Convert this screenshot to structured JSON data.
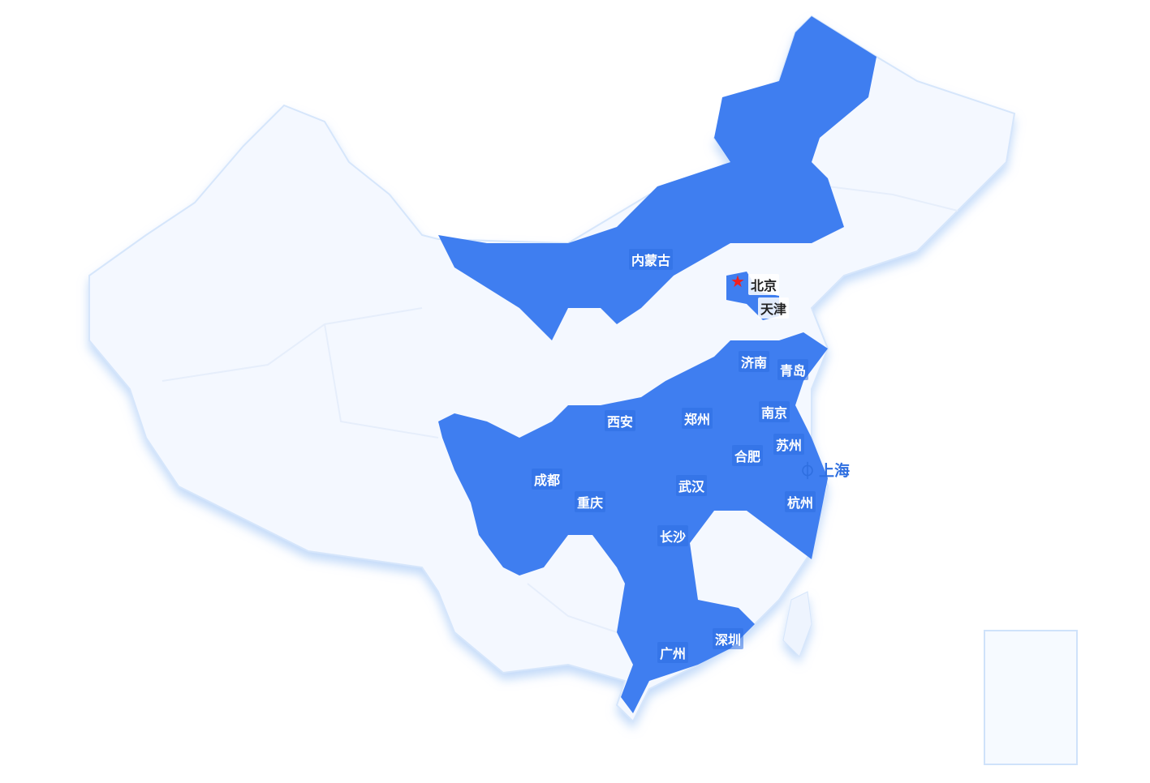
{
  "map": {
    "colors": {
      "highlight": "#3f7ef0",
      "base": "#f4f8ff",
      "border": "#d6e6fb",
      "capital_marker": "#f0201f",
      "shanghai_label": "#2f6fe0"
    },
    "capital": {
      "label": "北京",
      "icon": "star-icon"
    },
    "tianjin": "天津",
    "shanghai": {
      "label": "上海",
      "icon": "location-logo-icon"
    },
    "regions": [
      "内蒙古"
    ],
    "cities": [
      "济南",
      "青岛",
      "西安",
      "郑州",
      "南京",
      "苏州",
      "合肥",
      "成都",
      "重庆",
      "武汉",
      "杭州",
      "长沙",
      "广州",
      "深圳"
    ]
  }
}
